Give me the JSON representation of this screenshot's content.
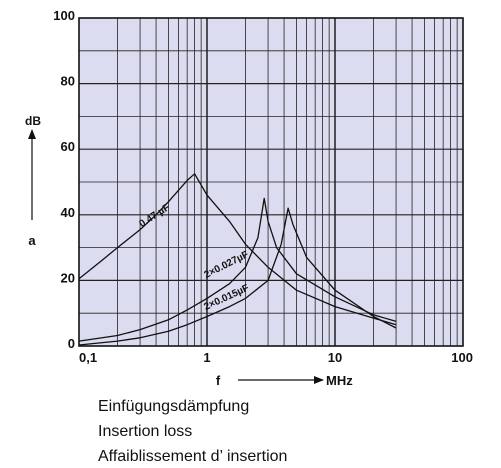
{
  "chart_data": {
    "type": "line",
    "title": "",
    "x_scale": "log",
    "xlim": [
      0.1,
      100
    ],
    "ylim": [
      0,
      100
    ],
    "grid": true,
    "background": "#dcdcf0",
    "line_color": "#111111",
    "x_ticks": [
      {
        "value": 0.1,
        "label": "0,1"
      },
      {
        "value": 1,
        "label": "1"
      },
      {
        "value": 10,
        "label": "10"
      },
      {
        "value": 100,
        "label": "100"
      }
    ],
    "y_ticks": [
      {
        "value": 0,
        "label": "0"
      },
      {
        "value": 20,
        "label": "20"
      },
      {
        "value": 40,
        "label": "40"
      },
      {
        "value": 60,
        "label": "60"
      },
      {
        "value": 80,
        "label": "80"
      },
      {
        "value": 100,
        "label": "100"
      }
    ],
    "xlabel": {
      "symbol": "f",
      "unit": "MHz"
    },
    "ylabel": {
      "unit": "dB",
      "symbol": "a"
    },
    "series": [
      {
        "name": "0.47 µF",
        "points": [
          [
            0.1,
            20.5
          ],
          [
            0.15,
            26
          ],
          [
            0.2,
            30
          ],
          [
            0.3,
            35.5
          ],
          [
            0.4,
            40
          ],
          [
            0.5,
            44
          ],
          [
            0.6,
            47.5
          ],
          [
            0.7,
            50.5
          ],
          [
            0.8,
            52.5
          ],
          [
            1.0,
            46
          ],
          [
            1.5,
            38
          ],
          [
            2.0,
            31
          ],
          [
            3.0,
            24
          ],
          [
            5.0,
            17
          ],
          [
            10.0,
            12
          ],
          [
            20.0,
            8.5
          ],
          [
            30.0,
            6.5
          ]
        ]
      },
      {
        "name": "2×0.027µF",
        "points": [
          [
            0.1,
            1.5
          ],
          [
            0.2,
            3.2
          ],
          [
            0.3,
            5
          ],
          [
            0.5,
            8
          ],
          [
            0.7,
            11
          ],
          [
            1.0,
            14.5
          ],
          [
            1.5,
            19
          ],
          [
            2.0,
            24
          ],
          [
            2.5,
            33
          ],
          [
            2.8,
            45
          ],
          [
            3.0,
            38
          ],
          [
            3.5,
            30
          ],
          [
            5.0,
            22
          ],
          [
            10.0,
            15
          ],
          [
            20.0,
            9.5
          ],
          [
            30.0,
            7.5
          ]
        ]
      },
      {
        "name": "2×0.015µF",
        "points": [
          [
            0.1,
            0.3
          ],
          [
            0.2,
            1.5
          ],
          [
            0.3,
            2.5
          ],
          [
            0.5,
            4.5
          ],
          [
            0.7,
            6.5
          ],
          [
            1.0,
            9
          ],
          [
            1.5,
            12
          ],
          [
            2.0,
            14.5
          ],
          [
            3.0,
            20
          ],
          [
            3.8,
            31
          ],
          [
            4.3,
            42
          ],
          [
            4.7,
            37
          ],
          [
            6.0,
            27
          ],
          [
            10.0,
            17
          ],
          [
            20.0,
            9
          ],
          [
            30.0,
            5.5
          ]
        ]
      }
    ]
  },
  "caption": {
    "line1": "Einfügungsdämpfung",
    "line2": "Insertion loss",
    "line3": "Affaiblissement d’ insertion"
  }
}
